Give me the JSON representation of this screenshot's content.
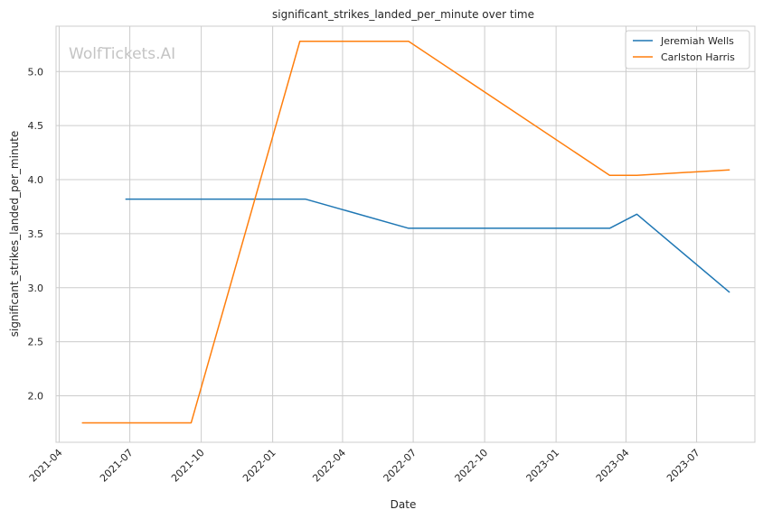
{
  "chart_data": {
    "type": "line",
    "title": "significant_strikes_landed_per_minute over time",
    "xlabel": "Date",
    "ylabel": "significant_strikes_landed_per_minute",
    "watermark": "WolfTickets.AI",
    "x_axis": "date",
    "xlim": [
      "2021-03-28",
      "2023-09-14"
    ],
    "ylim": [
      1.57,
      5.42
    ],
    "x_ticks": [
      "2021-04-01",
      "2021-07-01",
      "2021-10-01",
      "2022-01-01",
      "2022-04-01",
      "2022-07-01",
      "2022-10-01",
      "2023-01-01",
      "2023-04-01",
      "2023-07-01"
    ],
    "x_tick_labels": [
      "2021-04",
      "2021-07",
      "2021-10",
      "2022-01",
      "2022-04",
      "2022-07",
      "2022-10",
      "2023-01",
      "2023-04",
      "2023-07"
    ],
    "y_ticks": [
      2.0,
      2.5,
      3.0,
      3.5,
      4.0,
      4.5,
      5.0
    ],
    "y_tick_labels": [
      "2.0",
      "2.5",
      "3.0",
      "3.5",
      "4.0",
      "4.5",
      "5.0"
    ],
    "grid": true,
    "legend_position": "top-right",
    "series": [
      {
        "name": "Jeremiah Wells",
        "color": "#1f77b4",
        "x": [
          "2021-06-26",
          "2022-02-12",
          "2022-06-25",
          "2023-03-11",
          "2023-04-15",
          "2023-08-12"
        ],
        "y": [
          3.82,
          3.82,
          3.55,
          3.55,
          3.68,
          2.96
        ]
      },
      {
        "name": "Carlston Harris",
        "color": "#ff7f0e",
        "x": [
          "2021-05-01",
          "2021-09-18",
          "2022-02-05",
          "2022-06-25",
          "2023-03-11",
          "2023-04-15",
          "2023-08-12"
        ],
        "y": [
          1.75,
          1.75,
          5.28,
          5.28,
          4.04,
          4.04,
          4.09
        ]
      }
    ]
  }
}
